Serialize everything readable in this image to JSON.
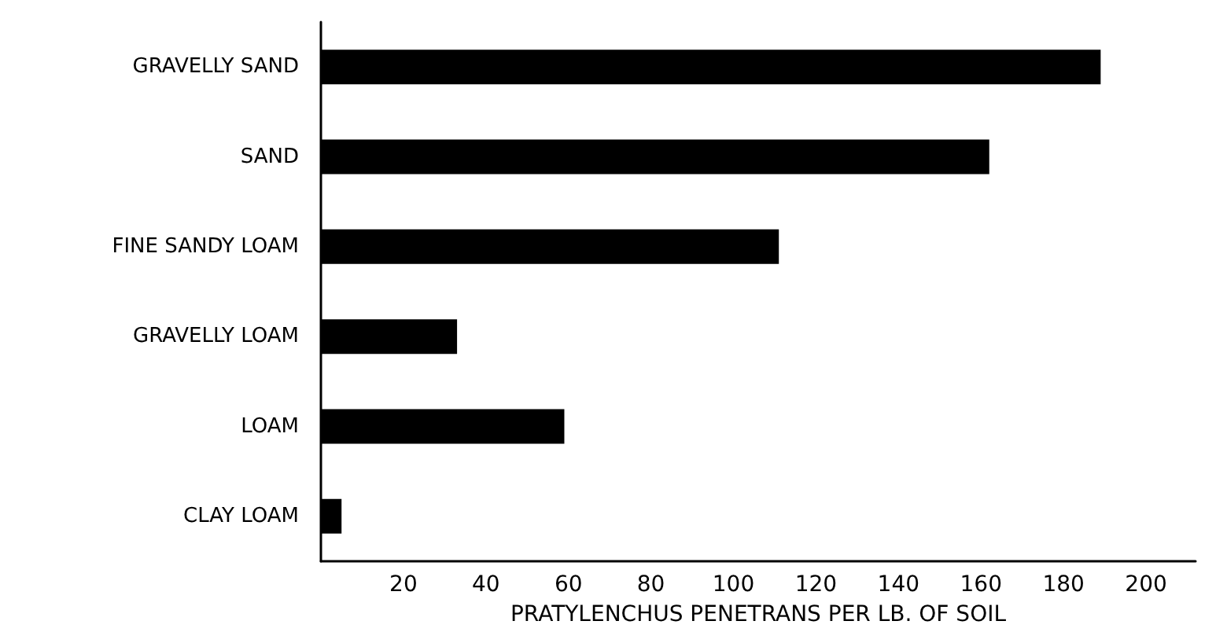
{
  "chart_data": {
    "type": "bar",
    "orientation": "horizontal",
    "xlabel": "PRATYLENCHUS PENETRANS PER LB. OF SOIL",
    "categories": [
      "GRAVELLY SAND",
      "SAND",
      "FINE SANDY LOAM",
      "GRAVELLY LOAM",
      "LOAM",
      "CLAY LOAM"
    ],
    "values": [
      189,
      162,
      111,
      33,
      59,
      5
    ],
    "color": "#000000",
    "xlim": [
      0,
      212
    ],
    "xticks": [
      20,
      40,
      60,
      80,
      100,
      120,
      140,
      160,
      180,
      200
    ],
    "grid": false
  }
}
